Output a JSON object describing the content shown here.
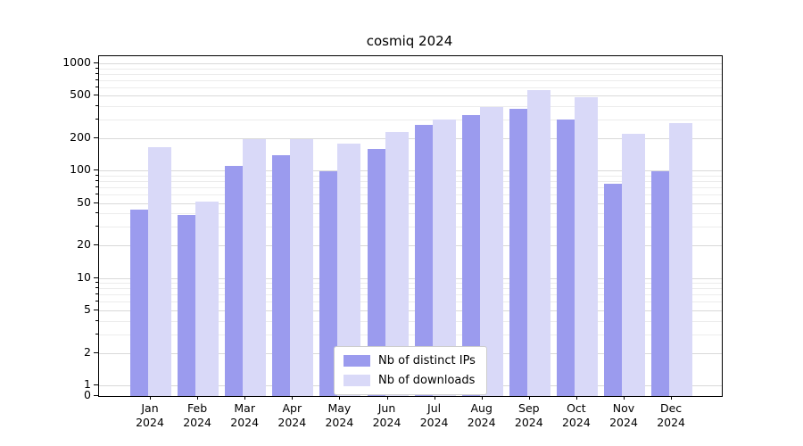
{
  "chart_data": {
    "type": "bar",
    "title": "cosmiq 2024",
    "x_year": "2024",
    "categories": [
      "Jan",
      "Feb",
      "Mar",
      "Apr",
      "May",
      "Jun",
      "Jul",
      "Aug",
      "Sep",
      "Oct",
      "Nov",
      "Dec"
    ],
    "series": [
      {
        "name": "Nb of distinct IPs",
        "color": "#9b9bee",
        "values": [
          43,
          39,
          110,
          140,
          98,
          160,
          265,
          330,
          375,
          300,
          75,
          98
        ]
      },
      {
        "name": "Nb of downloads",
        "color": "#d9d9f8",
        "values": [
          165,
          52,
          195,
          197,
          178,
          230,
          300,
          390,
          560,
          480,
          220,
          280
        ]
      }
    ],
    "yscale": "symlog",
    "yticks": [
      0,
      1,
      2,
      5,
      10,
      20,
      50,
      100,
      200,
      500,
      1000
    ],
    "ylim": [
      0,
      1000
    ],
    "grid": "horizontal major+minor",
    "legend_position": "lower center"
  }
}
